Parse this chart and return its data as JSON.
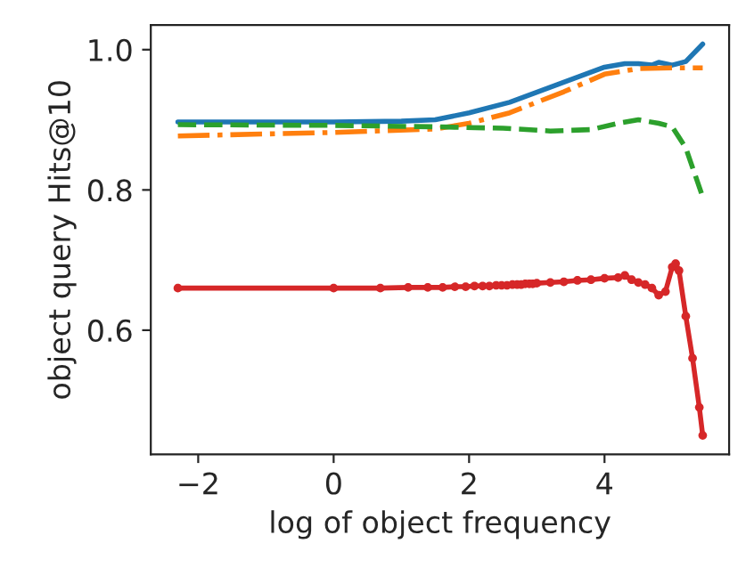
{
  "chart_data": {
    "type": "line",
    "xlabel": "log of object frequency",
    "ylabel": "object query Hits@10",
    "xlim": [
      -2.7,
      5.84
    ],
    "ylim": [
      0.423,
      1.035
    ],
    "xticks": [
      {
        "value": -2,
        "label": "−2"
      },
      0,
      2,
      4
    ],
    "yticks": [
      {
        "value": 0.6,
        "label": "0.6"
      },
      {
        "value": 0.8,
        "label": "0.8"
      },
      {
        "value": 1.0,
        "label": "1.0"
      }
    ],
    "grid": false,
    "legend": false,
    "series": [
      {
        "color": "#1f77b4",
        "line_style": "solid",
        "marker": "none",
        "x": [
          -2.3,
          0,
          1,
          1.5,
          2,
          2.6,
          3.3,
          4.0,
          4.3,
          4.5,
          4.7,
          4.8,
          5.0,
          5.2,
          5.45
        ],
        "values": [
          0.897,
          0.897,
          0.898,
          0.9,
          0.91,
          0.925,
          0.95,
          0.975,
          0.98,
          0.98,
          0.978,
          0.982,
          0.978,
          0.983,
          1.008
        ]
      },
      {
        "color": "#ff7f0e",
        "line_style": "dashdot",
        "marker": "none",
        "x": [
          -2.3,
          0,
          1.5,
          2,
          2.6,
          3.4,
          4.0,
          4.5,
          5.0,
          5.45
        ],
        "values": [
          0.877,
          0.882,
          0.887,
          0.895,
          0.91,
          0.94,
          0.965,
          0.973,
          0.974,
          0.974
        ]
      },
      {
        "color": "#2ca02c",
        "line_style": "dashed",
        "marker": "none",
        "x": [
          -2.3,
          0,
          1.5,
          2.5,
          3.2,
          3.8,
          4.2,
          4.5,
          4.8,
          5.0,
          5.2,
          5.45
        ],
        "values": [
          0.893,
          0.892,
          0.89,
          0.888,
          0.884,
          0.886,
          0.895,
          0.9,
          0.895,
          0.89,
          0.86,
          0.79
        ]
      },
      {
        "color": "#d62728",
        "line_style": "solid",
        "marker": "circle",
        "x": [
          -2.3,
          0,
          0.69,
          1.1,
          1.39,
          1.61,
          1.79,
          1.95,
          2.08,
          2.2,
          2.3,
          2.4,
          2.48,
          2.56,
          2.64,
          2.71,
          2.77,
          2.83,
          2.89,
          2.94,
          3.0,
          3.2,
          3.4,
          3.6,
          3.8,
          4.0,
          4.2,
          4.3,
          4.4,
          4.5,
          4.6,
          4.7,
          4.8,
          4.9,
          5.0,
          5.05,
          5.1,
          5.2,
          5.3,
          5.4,
          5.45
        ],
        "values": [
          0.66,
          0.66,
          0.66,
          0.661,
          0.661,
          0.661,
          0.662,
          0.662,
          0.663,
          0.663,
          0.663,
          0.664,
          0.664,
          0.664,
          0.665,
          0.665,
          0.665,
          0.666,
          0.666,
          0.666,
          0.667,
          0.668,
          0.669,
          0.671,
          0.672,
          0.674,
          0.675,
          0.678,
          0.672,
          0.668,
          0.665,
          0.66,
          0.65,
          0.655,
          0.69,
          0.695,
          0.685,
          0.62,
          0.56,
          0.49,
          0.45
        ]
      }
    ]
  }
}
